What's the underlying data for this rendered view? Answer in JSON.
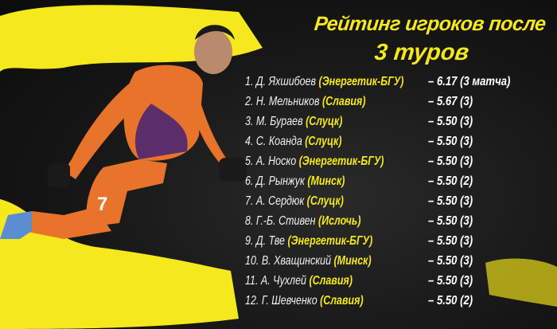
{
  "title": {
    "line1": "Рейтинг игроков после",
    "line2": "3 туров"
  },
  "colors": {
    "accent": "#f5e81c",
    "background": "#141414",
    "jersey": "#e8732a"
  },
  "ratings": [
    {
      "rank": "1.",
      "name": "Д. Яхшибоев",
      "club": "(Энергетик-БГУ)",
      "score": "– 6.17 (3 матча)"
    },
    {
      "rank": "2.",
      "name": "Н. Мельников",
      "club": "(Славия)",
      "score": "– 5.67 (3)"
    },
    {
      "rank": "3.",
      "name": "М. Бураев",
      "club": "(Слуцк)",
      "score": "– 5.50 (3)"
    },
    {
      "rank": "4.",
      "name": "С. Коанда",
      "club": "(Слуцк)",
      "score": "– 5.50 (3)"
    },
    {
      "rank": "5.",
      "name": "А. Носко",
      "club": "(Энергетик-БГУ)",
      "score": "– 5.50 (3)"
    },
    {
      "rank": "6.",
      "name": "Д. Рынжук",
      "club": "(Минск)",
      "score": "– 5.50 (2)"
    },
    {
      "rank": "7.",
      "name": "А. Сердюк",
      "club": "(Слуцк)",
      "score": "– 5.50 (3)"
    },
    {
      "rank": "8.",
      "name": "Г.-Б. Стивен",
      "club": "(Ислочь)",
      "score": "– 5.50 (3)"
    },
    {
      "rank": "9.",
      "name": "Д. Тве",
      "club": "(Энергетик-БГУ)",
      "score": "– 5.50 (3)"
    },
    {
      "rank": "10.",
      "name": "В. Хващинский",
      "club": "(Минск)",
      "score": "– 5.50 (3)"
    },
    {
      "rank": "11.",
      "name": "А. Чухлей",
      "club": "(Славия)",
      "score": "– 5.50 (3)"
    },
    {
      "rank": "12.",
      "name": "Г. Шевченко",
      "club": "(Славия)",
      "score": "– 5.50 (2)"
    }
  ],
  "player": {
    "jersey_number": "7"
  }
}
